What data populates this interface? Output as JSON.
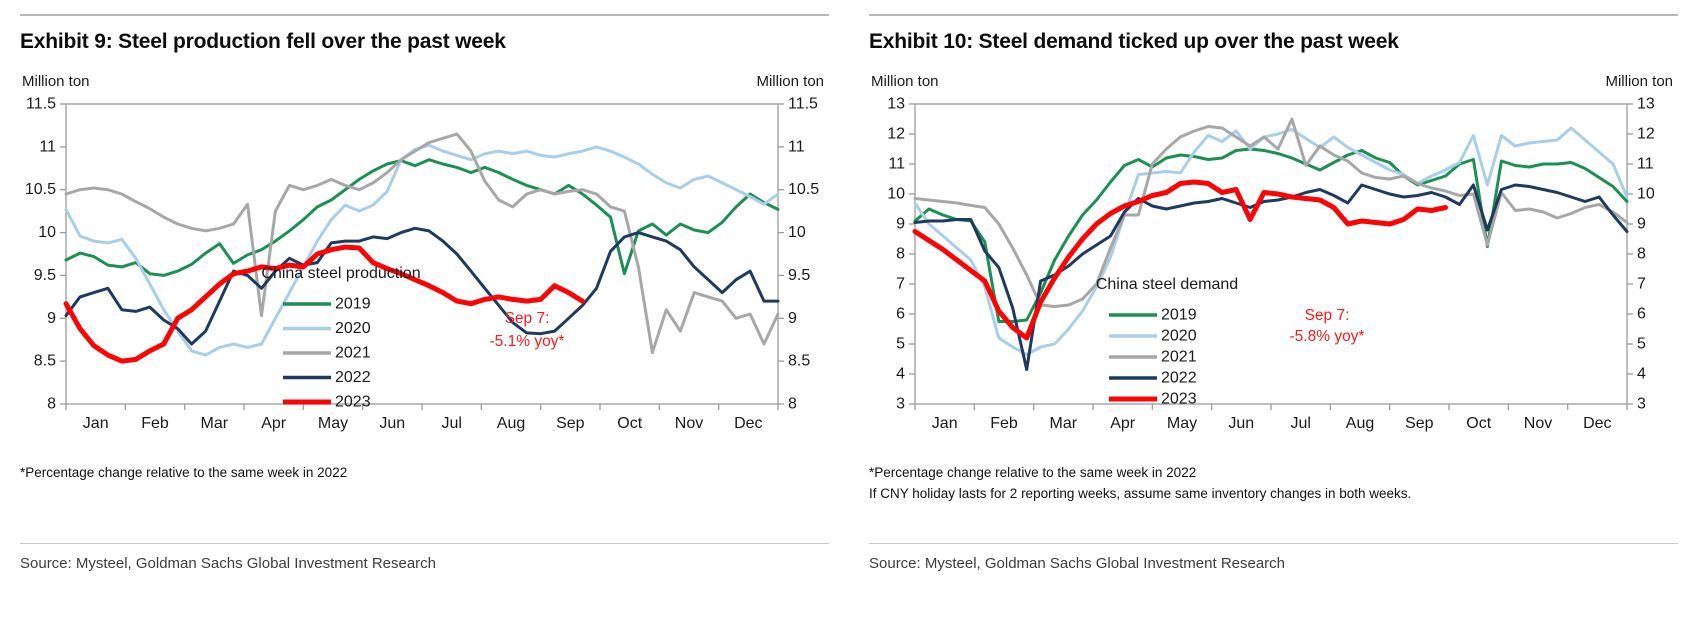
{
  "panels": [
    {
      "footnotes": [
        "*Percentage change relative to the same week in 2022"
      ],
      "source": "Source: Mysteel, Goldman Sachs Global Investment Research"
    },
    {
      "footnotes": [
        "*Percentage change relative to the same week in 2022",
        "If CNY holiday lasts for 2 reporting weeks, assume same inventory changes in both weeks."
      ],
      "source": "Source: Mysteel, Goldman Sachs Global Investment Research"
    }
  ],
  "colors": {
    "y2019": "#1a9053",
    "y2020": "#a8cee9",
    "y2021": "#a7a7a7",
    "y2022": "#1e3a5f",
    "y2023": "#fc0404",
    "axis": "#9b9b9b",
    "annotation_red": "#fc1a1a"
  },
  "chart_data": [
    {
      "type": "line",
      "title": "Exhibit 9: Steel production fell over the past week",
      "ylabel_left": "Million ton",
      "ylabel_right": "Million ton",
      "legend_title": "China steel production",
      "legend_position": "inside-bottom-center",
      "annotation": {
        "text_lines": [
          "Sep 7:",
          "-5.1% yoy*"
        ],
        "color": "#fc1a1a"
      },
      "x_categories": [
        "Jan",
        "Feb",
        "Mar",
        "Apr",
        "May",
        "Jun",
        "Jul",
        "Aug",
        "Sep",
        "Oct",
        "Nov",
        "Dec"
      ],
      "weeks_per_year": 52,
      "ylim": [
        8,
        11.5
      ],
      "ytick_step": 0.5,
      "grid": false,
      "series": [
        {
          "name": "2019",
          "color": "#1a9053",
          "width": 3,
          "values": [
            9.68,
            9.76,
            9.72,
            9.62,
            9.6,
            9.65,
            9.52,
            9.5,
            9.55,
            9.63,
            9.76,
            9.87,
            9.64,
            9.74,
            9.8,
            9.9,
            10.02,
            10.15,
            10.3,
            10.38,
            10.5,
            10.62,
            10.72,
            10.8,
            10.84,
            10.78,
            10.85,
            10.8,
            10.76,
            10.7,
            10.76,
            10.7,
            10.62,
            10.55,
            10.5,
            10.45,
            10.55,
            10.45,
            10.32,
            10.18,
            9.52,
            10.02,
            10.1,
            9.97,
            10.1,
            10.03,
            10.0,
            10.12,
            10.3,
            10.45,
            10.35,
            10.27
          ]
        },
        {
          "name": "2020",
          "color": "#a8cee9",
          "width": 3,
          "values": [
            10.27,
            9.96,
            9.9,
            9.88,
            9.92,
            9.7,
            9.4,
            9.1,
            8.85,
            8.62,
            8.57,
            8.66,
            8.7,
            8.66,
            8.7,
            9.0,
            9.3,
            9.6,
            9.9,
            10.15,
            10.32,
            10.25,
            10.32,
            10.48,
            10.85,
            10.97,
            11.02,
            10.95,
            10.9,
            10.85,
            10.92,
            10.95,
            10.92,
            10.95,
            10.9,
            10.88,
            10.92,
            10.95,
            11.0,
            10.95,
            10.88,
            10.8,
            10.68,
            10.58,
            10.52,
            10.62,
            10.66,
            10.58,
            10.5,
            10.42,
            10.33,
            10.45
          ]
        },
        {
          "name": "2021",
          "color": "#a7a7a7",
          "width": 3,
          "values": [
            10.45,
            10.5,
            10.52,
            10.5,
            10.45,
            10.36,
            10.28,
            10.18,
            10.1,
            10.05,
            10.02,
            10.05,
            10.1,
            10.33,
            9.03,
            10.25,
            10.55,
            10.5,
            10.55,
            10.62,
            10.55,
            10.5,
            10.58,
            10.7,
            10.85,
            10.95,
            11.05,
            11.1,
            11.15,
            10.95,
            10.6,
            10.38,
            10.3,
            10.45,
            10.5,
            10.45,
            10.48,
            10.5,
            10.45,
            10.3,
            10.25,
            9.6,
            8.6,
            9.1,
            8.85,
            9.3,
            9.25,
            9.2,
            9.0,
            9.05,
            8.7,
            9.05
          ]
        },
        {
          "name": "2022",
          "color": "#1e3a5f",
          "width": 3,
          "values": [
            9.03,
            9.25,
            9.3,
            9.35,
            9.1,
            9.08,
            9.13,
            8.98,
            8.88,
            8.7,
            8.85,
            9.2,
            9.55,
            9.5,
            9.35,
            9.55,
            9.7,
            9.62,
            9.65,
            9.88,
            9.9,
            9.9,
            9.95,
            9.93,
            10.0,
            10.05,
            10.02,
            9.9,
            9.75,
            9.55,
            9.35,
            9.15,
            8.95,
            8.83,
            8.82,
            8.85,
            9.0,
            9.15,
            9.35,
            9.78,
            9.95,
            10.0,
            9.95,
            9.9,
            9.8,
            9.6,
            9.45,
            9.3,
            9.45,
            9.55,
            9.2,
            9.2
          ]
        },
        {
          "name": "2023",
          "color": "#fc0404",
          "width": 5,
          "values": [
            9.17,
            8.88,
            8.68,
            8.57,
            8.5,
            8.52,
            8.62,
            8.7,
            9.0,
            9.1,
            9.25,
            9.4,
            9.52,
            9.55,
            9.6,
            9.58,
            9.62,
            9.6,
            9.75,
            9.8,
            9.83,
            9.82,
            9.65,
            9.58,
            9.52,
            9.45,
            9.38,
            9.3,
            9.2,
            9.17,
            9.22,
            9.25,
            9.22,
            9.2,
            9.22,
            9.38,
            9.3,
            9.2
          ]
        }
      ]
    },
    {
      "type": "line",
      "title": "Exhibit 10: Steel demand ticked up over the past week",
      "ylabel_left": "Million ton",
      "ylabel_right": "Million ton",
      "legend_title": "China steel demand",
      "legend_position": "inside-bottom-center",
      "annotation": {
        "text_lines": [
          "Sep 7:",
          "-5.8% yoy*"
        ],
        "color": "#fc1a1a"
      },
      "x_categories": [
        "Jan",
        "Feb",
        "Mar",
        "Apr",
        "May",
        "Jun",
        "Jul",
        "Aug",
        "Sep",
        "Oct",
        "Nov",
        "Dec"
      ],
      "weeks_per_year": 52,
      "ylim": [
        3,
        13
      ],
      "ytick_step": 1,
      "grid": false,
      "series": [
        {
          "name": "2019",
          "color": "#1a9053",
          "width": 3,
          "values": [
            9.1,
            9.5,
            9.3,
            9.15,
            9.1,
            8.4,
            5.75,
            5.75,
            5.8,
            6.7,
            7.8,
            8.6,
            9.3,
            9.8,
            10.4,
            10.95,
            11.15,
            10.9,
            11.2,
            11.3,
            11.25,
            11.15,
            11.2,
            11.45,
            11.5,
            11.45,
            11.35,
            11.2,
            11.0,
            10.8,
            11.05,
            11.3,
            11.45,
            11.2,
            11.05,
            10.6,
            10.3,
            10.45,
            10.6,
            11.0,
            11.15,
            8.25,
            11.1,
            10.95,
            10.9,
            11.0,
            11.0,
            11.05,
            10.85,
            10.55,
            10.25,
            9.75
          ]
        },
        {
          "name": "2020",
          "color": "#a8cee9",
          "width": 3,
          "values": [
            9.7,
            9.0,
            8.6,
            8.2,
            7.8,
            6.9,
            5.2,
            4.9,
            4.65,
            4.9,
            5.0,
            5.5,
            6.1,
            6.9,
            7.9,
            9.3,
            10.65,
            10.7,
            10.75,
            10.7,
            11.4,
            11.95,
            11.75,
            12.1,
            11.5,
            11.9,
            12.0,
            12.15,
            11.85,
            11.55,
            11.9,
            11.55,
            11.3,
            11.05,
            10.8,
            10.65,
            10.35,
            10.6,
            10.8,
            11.05,
            11.95,
            10.3,
            11.95,
            11.6,
            11.7,
            11.75,
            11.8,
            12.2,
            11.8,
            11.4,
            11.0,
            9.9
          ]
        },
        {
          "name": "2021",
          "color": "#a7a7a7",
          "width": 3,
          "values": [
            9.85,
            9.8,
            9.75,
            9.7,
            9.62,
            9.55,
            9.0,
            8.2,
            7.3,
            6.3,
            6.25,
            6.3,
            6.5,
            7.0,
            8.2,
            9.3,
            9.3,
            11.0,
            11.5,
            11.9,
            12.1,
            12.25,
            12.2,
            11.9,
            11.6,
            11.9,
            11.5,
            12.5,
            10.95,
            11.6,
            11.3,
            11.1,
            10.7,
            10.55,
            10.5,
            10.6,
            10.35,
            10.2,
            10.1,
            9.95,
            10.0,
            8.3,
            10.05,
            9.45,
            9.5,
            9.4,
            9.2,
            9.35,
            9.55,
            9.65,
            9.4,
            9.05
          ]
        },
        {
          "name": "2022",
          "color": "#1e3a5f",
          "width": 3,
          "values": [
            9.05,
            9.1,
            9.1,
            9.15,
            9.15,
            8.1,
            7.55,
            6.2,
            4.15,
            7.1,
            7.3,
            7.6,
            8.0,
            8.3,
            8.6,
            9.4,
            9.85,
            9.6,
            9.5,
            9.6,
            9.7,
            9.75,
            9.85,
            9.7,
            9.55,
            9.75,
            9.8,
            9.9,
            10.05,
            10.15,
            9.95,
            9.7,
            10.3,
            10.15,
            10.0,
            9.9,
            9.95,
            10.05,
            9.9,
            9.65,
            10.3,
            8.8,
            10.15,
            10.3,
            10.25,
            10.15,
            10.05,
            9.9,
            9.75,
            9.9,
            9.3,
            8.75
          ]
        },
        {
          "name": "2023",
          "color": "#fc0404",
          "width": 5,
          "values": [
            8.75,
            8.45,
            8.15,
            7.8,
            7.45,
            7.1,
            6.1,
            5.55,
            5.2,
            6.4,
            7.2,
            7.9,
            8.5,
            9.0,
            9.35,
            9.6,
            9.75,
            9.95,
            10.05,
            10.35,
            10.4,
            10.35,
            10.05,
            10.15,
            9.15,
            10.05,
            10.0,
            9.9,
            9.85,
            9.8,
            9.55,
            9.0,
            9.1,
            9.05,
            9.0,
            9.15,
            9.5,
            9.45,
            9.55
          ]
        }
      ]
    }
  ]
}
